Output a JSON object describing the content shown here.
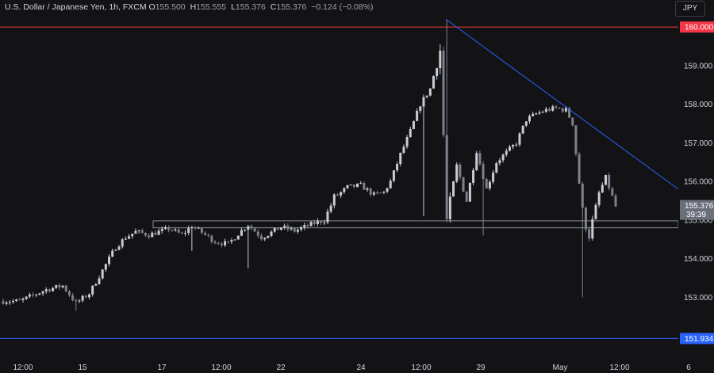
{
  "header": {
    "symbol": "U.S. Dollar / Japanese Yen, 1h, FXCM",
    "o_label": "O",
    "o": "155.500",
    "h_label": "H",
    "h": "155.555",
    "l_label": "L",
    "l": "155.376",
    "c_label": "C",
    "c": "155.376",
    "change": "−0.124 (−0.08%)"
  },
  "currency_button": "JPY",
  "chart_data": {
    "type": "candlestick",
    "price_ticks": [
      "159.000",
      "158.000",
      "157.000",
      "156.000",
      "155.000",
      "154.000",
      "153.000"
    ],
    "price_tick_values": [
      159,
      158,
      157,
      156,
      155,
      154,
      153
    ],
    "time_ticks": [
      "12:00",
      "15",
      "17",
      "12:00",
      "22",
      "24",
      "12:00",
      "29",
      "May",
      "12:00",
      "6"
    ],
    "ylim": [
      151.45,
      160.7
    ],
    "levels": [
      {
        "label": "160.000",
        "value": 160.0,
        "color": "#f23645"
      },
      {
        "label": "151.934",
        "value": 151.934,
        "color": "#2962ff"
      }
    ],
    "last_price": {
      "label": "155.376",
      "value": 155.376,
      "countdown": "39:39"
    },
    "support_zone": {
      "top": 154.98,
      "bottom": 154.8
    },
    "trendline": [
      {
        "t": 0.0,
        "price": 160.2
      },
      {
        "t": 1.0,
        "price": 155.8
      }
    ],
    "path": [
      [
        0,
        152.9
      ],
      [
        5,
        152.9
      ],
      [
        9,
        153.05
      ],
      [
        13,
        153.2
      ],
      [
        18,
        153.3
      ],
      [
        22,
        152.85
      ],
      [
        26,
        153.1
      ],
      [
        30,
        153.7
      ],
      [
        34,
        154.3
      ],
      [
        37,
        154.55
      ],
      [
        40,
        154.7
      ],
      [
        44,
        154.62
      ],
      [
        48,
        154.72
      ],
      [
        50,
        154.78
      ],
      [
        54,
        154.62
      ],
      [
        57,
        154.85
      ],
      [
        60,
        154.68
      ],
      [
        64,
        154.44
      ],
      [
        68,
        154.38
      ],
      [
        71,
        154.65
      ],
      [
        74,
        154.88
      ],
      [
        78,
        154.55
      ],
      [
        81,
        154.68
      ],
      [
        84,
        154.82
      ],
      [
        88,
        154.72
      ],
      [
        91,
        154.82
      ],
      [
        94,
        154.92
      ],
      [
        97,
        155.0
      ],
      [
        100,
        155.58
      ],
      [
        104,
        155.85
      ],
      [
        108,
        155.9
      ],
      [
        112,
        155.65
      ],
      [
        115,
        155.72
      ],
      [
        117,
        156.0
      ],
      [
        120,
        156.7
      ],
      [
        123,
        157.3
      ],
      [
        126,
        158.0
      ],
      [
        129,
        158.4
      ],
      [
        132,
        159.4
      ],
      [
        134,
        155.0
      ],
      [
        137,
        156.4
      ],
      [
        140,
        155.5
      ],
      [
        143,
        156.8
      ],
      [
        146,
        155.8
      ],
      [
        149,
        156.5
      ],
      [
        152,
        156.75
      ],
      [
        155,
        157.0
      ],
      [
        158,
        157.6
      ],
      [
        161,
        157.75
      ],
      [
        164,
        157.85
      ],
      [
        167,
        157.9
      ],
      [
        170,
        157.85
      ],
      [
        172,
        157.5
      ],
      [
        175,
        155.2
      ],
      [
        177,
        154.6
      ],
      [
        180,
        155.7
      ],
      [
        182,
        156.1
      ],
      [
        184,
        155.6
      ],
      [
        185,
        155.35
      ]
    ],
    "volatile": [
      [
        98,
        1.4
      ],
      [
        100,
        1.6
      ],
      [
        132,
        3.0
      ],
      [
        135,
        2.2
      ],
      [
        138,
        1.8
      ],
      [
        141,
        1.5
      ],
      [
        174,
        1.8
      ],
      [
        175,
        2.5
      ],
      [
        176,
        2.6
      ],
      [
        178,
        1.6
      ]
    ],
    "spikes": [
      {
        "i": 22,
        "lo": 152.65
      },
      {
        "i": 57,
        "lo": 154.2
      },
      {
        "i": 74,
        "lo": 153.75
      },
      {
        "i": 134,
        "lo": 155.05,
        "hi": 160.2
      },
      {
        "i": 145,
        "lo": 154.6
      },
      {
        "i": 175,
        "lo": 153.0
      },
      {
        "i": 127,
        "lo": 155.1
      }
    ]
  },
  "colors": {
    "background": "#131316",
    "candle_up": "#c9ccd3",
    "candle_down": "#7d818c",
    "resistance": "#f23645",
    "support": "#2962ff",
    "trendline": "#2962ff",
    "zone": "#8a8e98",
    "axis_text": "#d1d4dc",
    "last_price_tag": "#6b6f7a"
  }
}
